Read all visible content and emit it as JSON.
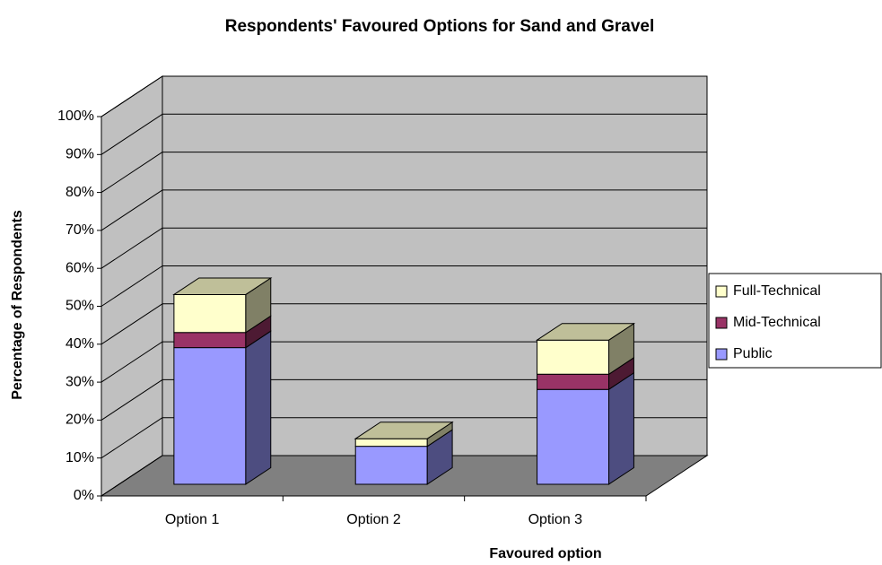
{
  "chart_data": {
    "type": "bar3d_stacked",
    "title": "Respondents' Favoured Options for Sand and Gravel",
    "x_label": "Favoured option",
    "y_label": "Percentage of Respondents",
    "categories": [
      "Option 1",
      "Option 2",
      "Option 3"
    ],
    "series": [
      {
        "name": "Public",
        "color": "#9999ff",
        "values": [
          36,
          10,
          25
        ]
      },
      {
        "name": "Mid-Technical",
        "color": "#993366",
        "values": [
          4,
          0,
          4
        ]
      },
      {
        "name": "Full-Technical",
        "color": "#ffffcc",
        "values": [
          10,
          2,
          9
        ]
      }
    ],
    "ylim": [
      0,
      100
    ],
    "yticks": [
      {
        "value": 0,
        "label": "0%"
      },
      {
        "value": 10,
        "label": "10%"
      },
      {
        "value": 20,
        "label": "20%"
      },
      {
        "value": 30,
        "label": "30%"
      },
      {
        "value": 40,
        "label": "40%"
      },
      {
        "value": 50,
        "label": "50%"
      },
      {
        "value": 60,
        "label": "60%"
      },
      {
        "value": 70,
        "label": "70%"
      },
      {
        "value": 80,
        "label": "80%"
      },
      {
        "value": 90,
        "label": "90%"
      },
      {
        "value": 100,
        "label": "100%"
      }
    ],
    "grid": true,
    "legend": "right"
  }
}
